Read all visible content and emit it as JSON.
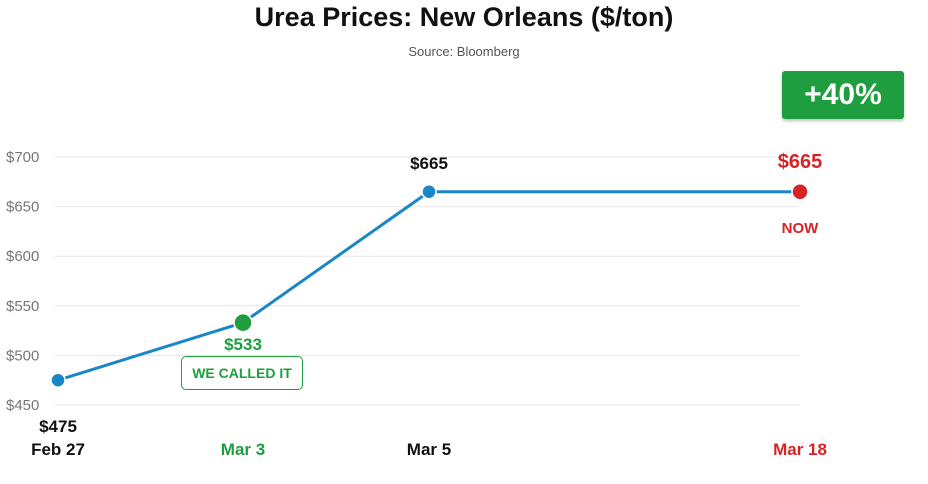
{
  "header": {
    "title": "Urea Prices: New Orleans ($/ton)",
    "subtitle": "Source: Bloomberg"
  },
  "badge": {
    "label": "+40%",
    "color": "#1e9e3e"
  },
  "callout": {
    "label": "WE CALLED IT",
    "color": "#1e9e3e"
  },
  "now_label": "NOW",
  "colors": {
    "line": "#1a86c8",
    "highlight_green": "#1e9e3e",
    "highlight_red": "#d62424",
    "grid": "#e6e6e6",
    "axis_text": "#777777"
  },
  "chart_data": {
    "type": "line",
    "title": "Urea Prices: New Orleans ($/ton)",
    "subtitle": "Source: Bloomberg",
    "categories": [
      "Feb 27",
      "Mar 3",
      "Mar 5",
      "Mar 18"
    ],
    "values": [
      475,
      533,
      665,
      665
    ],
    "data_labels": [
      "$475",
      "$533",
      "$665",
      "$665"
    ],
    "category_colors": [
      "#111111",
      "#1e9e3e",
      "#111111",
      "#d62424"
    ],
    "point_colors": [
      "#1a86c8",
      "#1e9e3e",
      "#1a86c8",
      "#d62424"
    ],
    "ylim": [
      450,
      700
    ],
    "yticks": [
      450,
      500,
      550,
      600,
      650,
      700
    ],
    "ytick_labels": [
      "$450",
      "$500",
      "$550",
      "$600",
      "$650",
      "$700"
    ],
    "grid": true,
    "legend": "none"
  }
}
